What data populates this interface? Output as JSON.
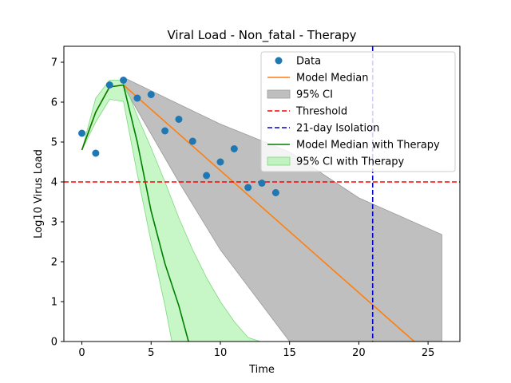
{
  "chart_data": {
    "type": "line",
    "title": "Viral Load - Non_fatal - Therapy",
    "xlabel": "Time",
    "ylabel": "Log10 Virus Load",
    "xlim": [
      -1.3,
      27.3
    ],
    "ylim": [
      0,
      7.4
    ],
    "xticks": [
      0,
      5,
      10,
      15,
      20,
      25
    ],
    "yticks": [
      0,
      1,
      2,
      3,
      4,
      5,
      6,
      7
    ],
    "grid": false,
    "legend_position": "top-right",
    "colors": {
      "data": "#1f77b4",
      "model_median": "#ff7f0e",
      "ci": "#808080",
      "threshold": "#ff0000",
      "isolation": "#0000cc",
      "therapy_median": "#008000",
      "therapy_ci": "#90ee90"
    },
    "legend": [
      {
        "key": "data",
        "label": "Data"
      },
      {
        "key": "model_median",
        "label": "Model Median"
      },
      {
        "key": "ci",
        "label": "95% CI"
      },
      {
        "key": "threshold",
        "label": "Threshold"
      },
      {
        "key": "isolation",
        "label": "21-day Isolation"
      },
      {
        "key": "therapy_median",
        "label": "Model Median with Therapy"
      },
      {
        "key": "therapy_ci",
        "label": "95% CI with Therapy"
      }
    ],
    "series": [
      {
        "name": "Data",
        "kind": "scatter",
        "x": [
          0,
          1,
          2,
          3,
          4,
          5,
          6,
          7,
          8,
          9,
          10,
          11,
          12,
          13,
          14
        ],
        "y": [
          5.22,
          4.72,
          6.43,
          6.55,
          6.1,
          6.19,
          5.28,
          5.57,
          5.02,
          4.16,
          4.5,
          4.83,
          3.86,
          3.97,
          3.73
        ]
      },
      {
        "name": "Model Median",
        "kind": "line",
        "x": [
          0,
          1,
          2,
          3,
          24
        ],
        "y": [
          4.8,
          5.75,
          6.38,
          6.43,
          0
        ]
      },
      {
        "name": "95% CI",
        "kind": "band",
        "x": [
          3,
          7,
          10,
          15,
          20,
          26
        ],
        "lower": [
          6.4,
          4.0,
          2.3,
          0.0,
          0.0,
          0.0
        ],
        "upper": [
          6.62,
          5.95,
          5.45,
          4.75,
          3.6,
          2.68
        ]
      },
      {
        "name": "Threshold",
        "kind": "hline",
        "y": 4.0
      },
      {
        "name": "21-day Isolation",
        "kind": "vline",
        "x": 21
      },
      {
        "name": "Model Median with Therapy",
        "kind": "line",
        "x": [
          0,
          1,
          2,
          3,
          4,
          5,
          6,
          7,
          7.7
        ],
        "y": [
          4.8,
          5.75,
          6.38,
          6.43,
          5.0,
          3.27,
          1.95,
          0.9,
          0
        ]
      },
      {
        "name": "95% CI with Therapy",
        "kind": "band",
        "x": [
          0,
          1,
          2,
          3,
          4,
          5,
          6,
          6.5,
          7,
          8,
          9,
          10,
          11,
          12,
          12.9
        ],
        "lower": [
          4.8,
          5.5,
          6.07,
          6.02,
          4.2,
          2.5,
          0.9,
          0.0,
          0.0,
          0.0,
          0.0,
          0.0,
          0.0,
          0.0,
          0.0
        ],
        "upper": [
          4.8,
          6.1,
          6.55,
          6.55,
          5.65,
          4.85,
          4.0,
          3.55,
          3.1,
          2.3,
          1.6,
          1.0,
          0.5,
          0.1,
          0.0
        ]
      }
    ]
  }
}
